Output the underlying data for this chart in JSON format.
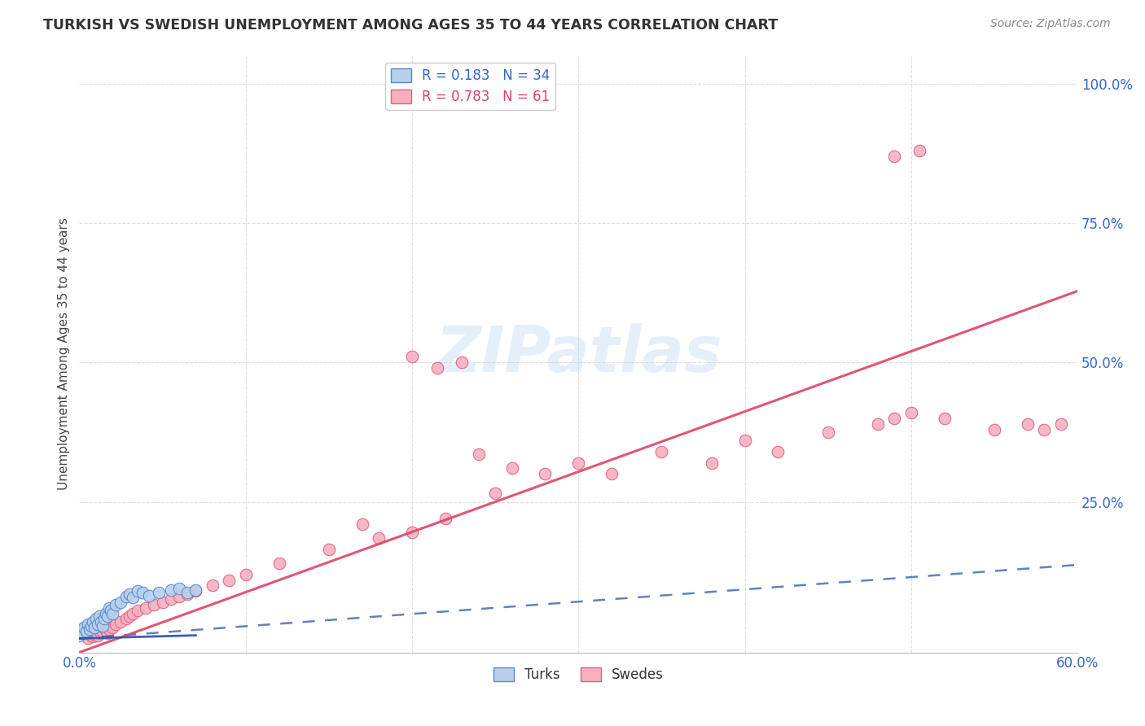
{
  "title": "TURKISH VS SWEDISH UNEMPLOYMENT AMONG AGES 35 TO 44 YEARS CORRELATION CHART",
  "source": "Source: ZipAtlas.com",
  "ylabel": "Unemployment Among Ages 35 to 44 years",
  "xlim": [
    0.0,
    0.6
  ],
  "ylim": [
    -0.02,
    1.05
  ],
  "xtick_positions": [
    0.0,
    0.1,
    0.2,
    0.3,
    0.4,
    0.5,
    0.6
  ],
  "xticklabels": [
    "0.0%",
    "",
    "",
    "",
    "",
    "",
    "60.0%"
  ],
  "ytick_positions": [
    0.0,
    0.25,
    0.5,
    0.75,
    1.0
  ],
  "yticklabels": [
    "",
    "25.0%",
    "50.0%",
    "75.0%",
    "100.0%"
  ],
  "turks_color": "#b8d0ea",
  "turks_edge_color": "#5588cc",
  "swedes_color": "#f8b0c0",
  "swedes_edge_color": "#e06080",
  "turks_R": 0.183,
  "turks_N": 34,
  "swedes_R": 0.783,
  "swedes_N": 61,
  "turks_line_color": "#3355aa",
  "swedes_line_color": "#dd4466",
  "background_color": "#ffffff",
  "grid_color": "#e0e0e0",
  "turks_line_slope": 0.08,
  "turks_line_intercept": 0.005,
  "swedes_line_slope": 1.08,
  "swedes_line_intercept": -0.02,
  "turks_dash_slope": 0.22,
  "turks_dash_intercept": 0.005,
  "swedes_x": [
    0.005,
    0.007,
    0.008,
    0.009,
    0.01,
    0.011,
    0.012,
    0.013,
    0.014,
    0.015,
    0.016,
    0.017,
    0.018,
    0.019,
    0.02,
    0.022,
    0.025,
    0.028,
    0.03,
    0.032,
    0.035,
    0.04,
    0.045,
    0.05,
    0.055,
    0.06,
    0.065,
    0.07,
    0.08,
    0.09,
    0.1,
    0.12,
    0.15,
    0.18,
    0.2,
    0.22,
    0.25,
    0.28,
    0.3,
    0.32,
    0.35,
    0.38,
    0.4,
    0.42,
    0.45,
    0.48,
    0.49,
    0.5,
    0.52,
    0.55,
    0.57,
    0.58,
    0.59,
    0.49,
    0.505,
    0.24,
    0.26,
    0.2,
    0.215,
    0.23,
    0.17
  ],
  "swedes_y": [
    0.005,
    0.01,
    0.008,
    0.012,
    0.015,
    0.01,
    0.02,
    0.015,
    0.018,
    0.025,
    0.02,
    0.015,
    0.022,
    0.03,
    0.025,
    0.03,
    0.035,
    0.04,
    0.045,
    0.05,
    0.055,
    0.06,
    0.065,
    0.07,
    0.075,
    0.08,
    0.085,
    0.09,
    0.1,
    0.11,
    0.12,
    0.14,
    0.165,
    0.185,
    0.195,
    0.22,
    0.265,
    0.3,
    0.32,
    0.3,
    0.34,
    0.32,
    0.36,
    0.34,
    0.375,
    0.39,
    0.4,
    0.41,
    0.4,
    0.38,
    0.39,
    0.38,
    0.39,
    0.87,
    0.88,
    0.335,
    0.31,
    0.51,
    0.49,
    0.5,
    0.21
  ],
  "turks_x": [
    0.0,
    0.001,
    0.002,
    0.003,
    0.004,
    0.005,
    0.006,
    0.007,
    0.008,
    0.009,
    0.01,
    0.011,
    0.012,
    0.013,
    0.014,
    0.015,
    0.016,
    0.017,
    0.018,
    0.019,
    0.02,
    0.022,
    0.025,
    0.028,
    0.03,
    0.032,
    0.035,
    0.038,
    0.042,
    0.048,
    0.055,
    0.06,
    0.065,
    0.07
  ],
  "turks_y": [
    0.01,
    0.02,
    0.015,
    0.025,
    0.018,
    0.03,
    0.022,
    0.028,
    0.035,
    0.025,
    0.04,
    0.03,
    0.045,
    0.035,
    0.028,
    0.04,
    0.05,
    0.045,
    0.06,
    0.055,
    0.05,
    0.065,
    0.07,
    0.08,
    0.085,
    0.078,
    0.09,
    0.088,
    0.082,
    0.088,
    0.092,
    0.095,
    0.088,
    0.092
  ]
}
